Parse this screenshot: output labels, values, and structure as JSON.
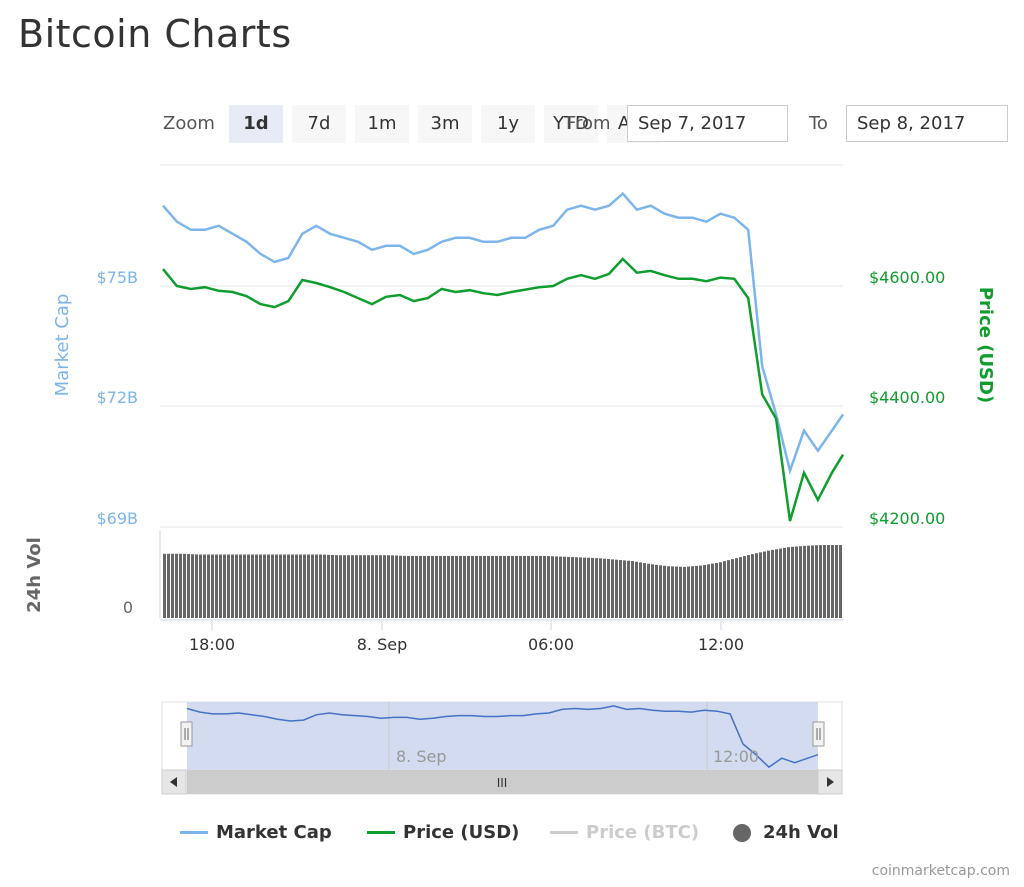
{
  "page": {
    "title": "Bitcoin Charts"
  },
  "range_selector": {
    "zoom_label": "Zoom",
    "buttons": [
      "1d",
      "7d",
      "1m",
      "3m",
      "1y",
      "YTD",
      "ALL"
    ],
    "active": "1d",
    "from_label": "From",
    "from_value": "Sep 7, 2017",
    "to_label": "To",
    "to_value": "Sep 8, 2017"
  },
  "colors": {
    "market_cap": "#7cb5ec",
    "price_usd": "#0f9d2e",
    "price_btc": "#cccccc",
    "volume": "#666666",
    "navigator_line": "#4572c4",
    "navigator_fill": "#cdd7ee"
  },
  "chart_data": {
    "type": "line",
    "title": "Bitcoin Charts",
    "x_ticks": [
      "18:00",
      "8. Sep",
      "06:00",
      "12:00"
    ],
    "navigator_ticks": [
      "8. Sep",
      "12:00"
    ],
    "yaxis_left": {
      "label": "Market Cap",
      "ticks": [
        "$75B",
        "$72B",
        "$69B"
      ],
      "values": [
        75,
        72,
        69
      ],
      "range": [
        69,
        78.2
      ],
      "unit": "billion USD"
    },
    "yaxis_right": {
      "label": "Price (USD)",
      "ticks": [
        "$4600.00",
        "$4400.00",
        "$4200.00"
      ],
      "values": [
        4600,
        4400,
        4200
      ],
      "range": [
        4200,
        4740
      ]
    },
    "yaxis_volume": {
      "label": "24h Vol",
      "ticks": [
        "0"
      ]
    },
    "series": [
      {
        "name": "Market Cap",
        "x_hours": [
          0,
          0.5,
          1,
          1.5,
          2,
          2.5,
          3,
          3.5,
          4,
          4.5,
          5,
          5.5,
          6,
          6.5,
          7,
          7.5,
          8,
          8.5,
          9,
          9.5,
          10,
          10.5,
          11,
          11.5,
          12,
          12.5,
          13,
          13.5,
          14,
          14.5,
          15,
          15.5,
          16,
          16.5,
          17,
          17.5,
          18,
          18.5,
          19,
          19.5,
          20,
          20.5,
          21,
          21.5,
          22,
          22.5,
          23,
          23.5,
          24,
          24.4
        ],
        "values": [
          77.0,
          76.6,
          76.4,
          76.4,
          76.5,
          76.3,
          76.1,
          75.8,
          75.6,
          75.7,
          76.3,
          76.5,
          76.3,
          76.2,
          76.1,
          75.9,
          76.0,
          76.0,
          75.8,
          75.9,
          76.1,
          76.2,
          76.2,
          76.1,
          76.1,
          76.2,
          76.2,
          76.4,
          76.5,
          76.9,
          77.0,
          76.9,
          77.0,
          77.3,
          76.9,
          77.0,
          76.8,
          76.7,
          76.7,
          76.6,
          76.8,
          76.7,
          76.4,
          73.0,
          71.8,
          70.4,
          71.4,
          70.9,
          71.4,
          71.8
        ]
      },
      {
        "name": "Price (USD)",
        "x_hours": [
          0,
          0.5,
          1,
          1.5,
          2,
          2.5,
          3,
          3.5,
          4,
          4.5,
          5,
          5.5,
          6,
          6.5,
          7,
          7.5,
          8,
          8.5,
          9,
          9.5,
          10,
          10.5,
          11,
          11.5,
          12,
          12.5,
          13,
          13.5,
          14,
          14.5,
          15,
          15.5,
          16,
          16.5,
          17,
          17.5,
          18,
          18.5,
          19,
          19.5,
          20,
          20.5,
          21,
          21.5,
          22,
          22.5,
          23,
          23.5,
          24,
          24.4
        ],
        "values": [
          4628,
          4600,
          4595,
          4598,
          4592,
          4590,
          4583,
          4570,
          4565,
          4575,
          4610,
          4605,
          4598,
          4590,
          4580,
          4570,
          4582,
          4585,
          4575,
          4580,
          4595,
          4590,
          4593,
          4588,
          4585,
          4590,
          4594,
          4598,
          4600,
          4612,
          4618,
          4612,
          4620,
          4645,
          4622,
          4625,
          4618,
          4612,
          4612,
          4608,
          4614,
          4612,
          4580,
          4420,
          4380,
          4210,
          4290,
          4245,
          4290,
          4320
        ]
      },
      {
        "name": "Price (BTC)",
        "values": [],
        "hidden": true
      },
      {
        "name": "24h Vol",
        "type": "column",
        "relative_values": [
          0.88,
          0.88,
          0.87,
          0.87,
          0.87,
          0.87,
          0.87,
          0.87,
          0.87,
          0.87,
          0.86,
          0.86,
          0.86,
          0.86,
          0.85,
          0.85,
          0.85,
          0.85,
          0.85,
          0.85,
          0.85,
          0.85,
          0.85,
          0.84,
          0.83,
          0.82,
          0.8,
          0.78,
          0.74,
          0.71,
          0.7,
          0.72,
          0.76,
          0.82,
          0.88,
          0.93,
          0.97,
          0.99,
          1.0,
          1.0
        ]
      }
    ],
    "grid": true,
    "legend": "bottom",
    "navigator": {
      "scrollbar_grip": "III"
    }
  },
  "legend": [
    {
      "label": "Market Cap",
      "color": "#7cb5ec",
      "shape": "line",
      "muted": false
    },
    {
      "label": "Price (USD)",
      "color": "#0f9d2e",
      "shape": "line",
      "muted": false
    },
    {
      "label": "Price (BTC)",
      "color": "#cccccc",
      "shape": "line",
      "muted": true
    },
    {
      "label": "24h Vol",
      "color": "#666666",
      "shape": "dot",
      "muted": false
    }
  ],
  "credits": "coinmarketcap.com"
}
